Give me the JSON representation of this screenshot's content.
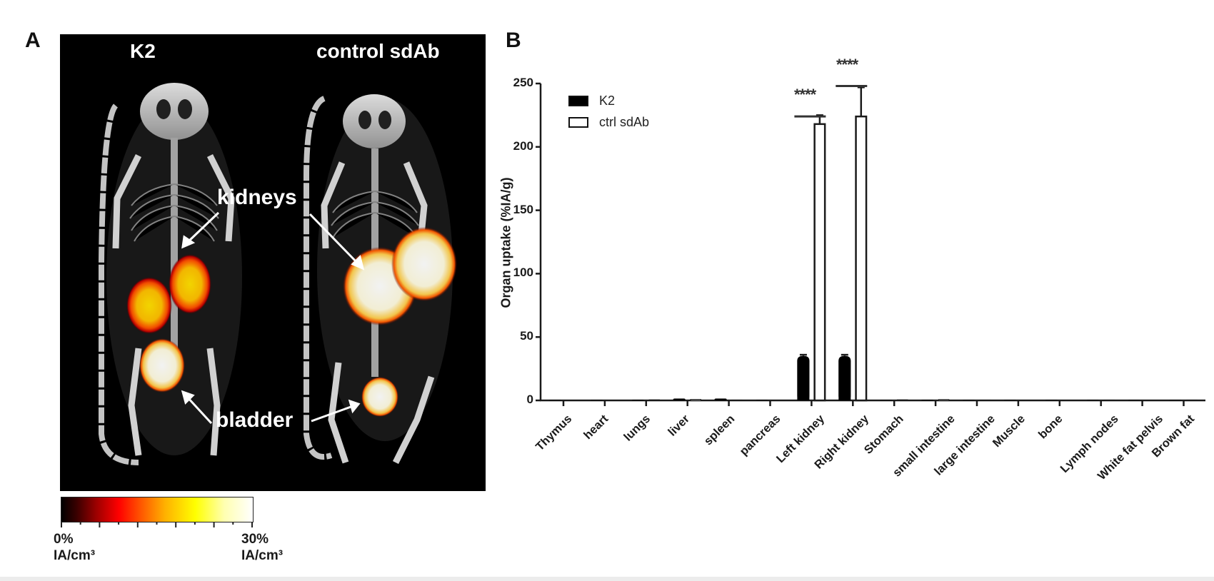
{
  "figure": {
    "panel_a_label": "A",
    "panel_b_label": "B"
  },
  "panel_a": {
    "group_left_title": "K2",
    "group_right_title": "control sdAb",
    "annotation_kidneys": "kidneys",
    "annotation_bladder": "bladder",
    "colorbar": {
      "min_value": "0%",
      "min_unit": "IA/cm³",
      "max_value": "30%",
      "max_unit": "IA/cm³",
      "colors": [
        "#000000",
        "#9a0000",
        "#ff0000",
        "#ff8c00",
        "#ffff00",
        "#ffffff"
      ]
    }
  },
  "legend": {
    "items": [
      {
        "label": "K2",
        "fill": "#000000"
      },
      {
        "label": "ctrl sdAb",
        "fill": "#ffffff"
      }
    ]
  },
  "significance": {
    "left_kidney": "****",
    "right_kidney": "****"
  },
  "chart_data": {
    "type": "bar",
    "title": "",
    "xlabel": "",
    "ylabel": "Organ uptake (%IA/g)",
    "ylim": [
      0,
      250
    ],
    "yticks": [
      0,
      50,
      100,
      150,
      200,
      250
    ],
    "grid": false,
    "legend_position": "upper left",
    "categories": [
      "Thymus",
      "heart",
      "lungs",
      "liver",
      "spleen",
      "pancreas",
      "Left kidney",
      "Right kidney",
      "Stomach",
      "small intestine",
      "large intestine",
      "Muscle",
      "bone",
      "Lymph nodes",
      "White fat pelvis",
      "Brown fat"
    ],
    "series": [
      {
        "name": "K2",
        "color": "#000000",
        "values": [
          0.2,
          0.2,
          0.5,
          1.5,
          1.5,
          0.2,
          35,
          35,
          0.3,
          0.5,
          0.3,
          0.2,
          0.2,
          0.3,
          0.2,
          0.3
        ],
        "errors": [
          0,
          0,
          0,
          0,
          0,
          0,
          1,
          1,
          0,
          0,
          0,
          0,
          0,
          0,
          0,
          0
        ]
      },
      {
        "name": "ctrl sdAb",
        "color": "#ffffff",
        "values": [
          0.2,
          0.2,
          0.5,
          0.8,
          0.3,
          0.2,
          218,
          224,
          0.5,
          0.7,
          0.3,
          0.2,
          0.2,
          0.3,
          0.2,
          0.3
        ],
        "errors": [
          0,
          0,
          0,
          0,
          0,
          0,
          7,
          23,
          0,
          0,
          0,
          0,
          0,
          0,
          0,
          0
        ]
      }
    ],
    "annotations": [
      {
        "text": "****",
        "category": "Left kidney",
        "y": 233
      },
      {
        "text": "****",
        "category": "Right kidney",
        "y": 257
      }
    ]
  }
}
